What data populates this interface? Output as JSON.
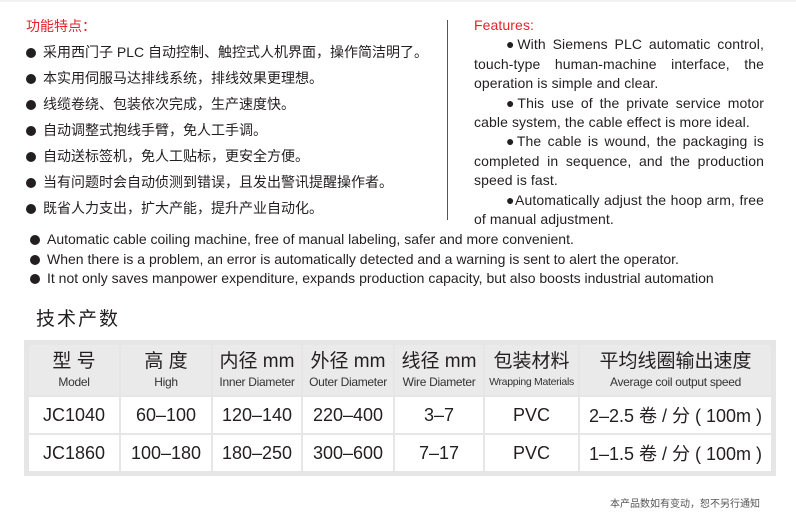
{
  "features_cn": {
    "title": "功能特点：",
    "items": [
      "采用西门子 PLC 自动控制、触控式人机界面，操作简洁明了。",
      "本实用伺服马达排线系统，排线效果更理想。",
      "线缆卷绕、包装依次完成，生产速度快。",
      "自动调整式抱线手臂，免人工手调。",
      "自动送标签机，免人工贴标，更安全方便。",
      "当有问题时会自动侦测到错误，且发出警讯提醒操作者。",
      "既省人力支出，扩大产能，提升产业自动化。"
    ]
  },
  "features_en": {
    "title": "Features:",
    "paragraphs": [
      "●With Siemens PLC automatic control, touch-type human-machine interface, the operation is simple and clear.",
      "●This use of the private service motor cable system, the cable effect is more ideal.",
      "●The cable is wound, the packaging is completed in sequence, and the production speed is fast.",
      "●Automatically adjust the hoop arm, free of manual adjustment."
    ],
    "items": [
      "Automatic cable coiling machine, free of manual labeling, safer and more convenient.",
      "When there is a problem, an error is automatically detected and a warning is sent to alert the operator.",
      "It not only saves manpower expenditure, expands production capacity, but also boosts industrial automation"
    ]
  },
  "specs": {
    "title": "技术产数",
    "headers": [
      {
        "cn": "型  号",
        "en": "Model"
      },
      {
        "cn": "高  度",
        "en": "High"
      },
      {
        "cn": "内径 mm",
        "en": "Inner Diameter"
      },
      {
        "cn": "外径 mm",
        "en": "Outer Diameter"
      },
      {
        "cn": "线径 mm",
        "en": "Wire Diameter"
      },
      {
        "cn": "包装材料",
        "en": "Wrapping Materials"
      },
      {
        "cn": "平均线圈输出速度",
        "en": "Average coil output speed"
      }
    ],
    "rows": [
      [
        "JC1040",
        "60–100",
        "120–140",
        "220–400",
        "3–7",
        "PVC",
        "2–2.5 卷 / 分 ( 100m )"
      ],
      [
        "JC1860",
        "100–180",
        "180–250",
        "300–600",
        "7–17",
        "PVC",
        "1–1.5 卷 / 分 ( 100m )"
      ]
    ]
  },
  "note": "本产品数如有变动，恕不另行通知",
  "colors": {
    "accent": "#e3242b",
    "text": "#231f20"
  }
}
